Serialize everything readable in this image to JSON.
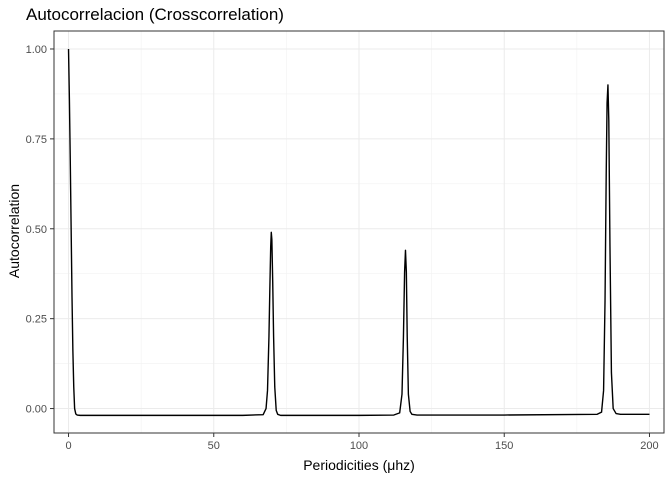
{
  "chart_data": {
    "type": "line",
    "title": "Autocorrelacion (Crosscorrelation)",
    "xlabel": "Periodicities (μhz)",
    "ylabel": "Autocorrelation",
    "xlim": [
      -5,
      205
    ],
    "ylim": [
      -0.068,
      1.05
    ],
    "x_ticks": [
      0,
      50,
      100,
      150,
      200
    ],
    "x_tick_labels": [
      "0",
      "50",
      "100",
      "150",
      "200"
    ],
    "y_ticks": [
      0,
      0.25,
      0.5,
      0.75,
      1
    ],
    "y_tick_labels": [
      "0.00",
      "0.25",
      "0.50",
      "0.75",
      "1.00"
    ],
    "grid": true,
    "legend": "none",
    "series": [
      {
        "x": [
          0,
          0.3,
          0.6,
          0.9,
          1.2,
          1.5,
          1.8,
          2.1,
          2.5,
          3,
          4,
          10,
          30,
          60,
          67,
          68,
          68.5,
          69,
          69.3,
          69.6,
          69.8,
          70,
          70.3,
          70.6,
          71,
          71.5,
          72,
          73,
          75,
          100,
          112,
          114,
          114.8,
          115.3,
          115.7,
          116,
          116.3,
          116.6,
          117,
          117.6,
          118.2,
          120,
          150,
          182,
          183.5,
          184.2,
          184.7,
          185.1,
          185.4,
          185.7,
          186,
          186.4,
          186.9,
          187.5,
          188.5,
          190,
          200
        ],
        "y": [
          1.0,
          0.86,
          0.69,
          0.5,
          0.31,
          0.16,
          0.06,
          0.0,
          -0.015,
          -0.018,
          -0.019,
          -0.019,
          -0.019,
          -0.019,
          -0.017,
          0.0,
          0.05,
          0.2,
          0.33,
          0.45,
          0.49,
          0.47,
          0.35,
          0.2,
          0.06,
          -0.005,
          -0.016,
          -0.019,
          -0.019,
          -0.019,
          -0.018,
          -0.012,
          0.04,
          0.2,
          0.38,
          0.44,
          0.38,
          0.2,
          0.04,
          -0.008,
          -0.016,
          -0.018,
          -0.018,
          -0.016,
          -0.01,
          0.05,
          0.3,
          0.65,
          0.85,
          0.9,
          0.8,
          0.45,
          0.1,
          0.0,
          -0.014,
          -0.016,
          -0.016
        ]
      }
    ],
    "colors": {
      "panel_border": "#333333",
      "grid_major": "#ebebeb",
      "grid_minor": "#f2f2f2",
      "line": "#000000"
    }
  }
}
